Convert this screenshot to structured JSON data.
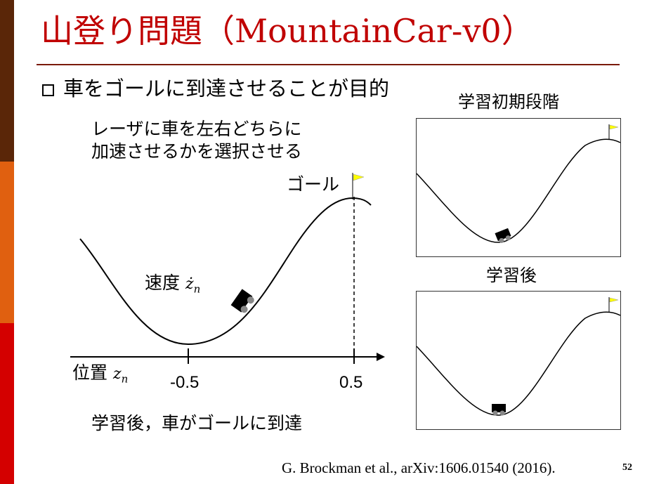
{
  "slide": {
    "title": "山登り問題（MountainCar-v0）",
    "bullet": "車をゴールに到達させることが目的",
    "note_line1": "レーザに車を左右どちらに",
    "note_line2": "加速させるかを選択させる",
    "goal_label": "ゴール",
    "velocity_label": "速度",
    "velocity_symbol": "ż",
    "velocity_sub": "n",
    "position_label": "位置",
    "position_symbol": "z",
    "position_sub": "n",
    "tick_left": "-0.5",
    "tick_right": "0.5",
    "result_caption": "学習後，車がゴールに到達",
    "panel_early_title": "学習初期段階",
    "panel_late_title": "学習後",
    "citation": "G. Brockman et al., arXiv:1606.01540 (2016).",
    "page_number": "52"
  },
  "colors": {
    "title": "#c00000",
    "sidebar_top": "#5a2608",
    "sidebar_mid": "#e06010",
    "sidebar_bottom": "#d40000",
    "flag": "#ffff00"
  }
}
